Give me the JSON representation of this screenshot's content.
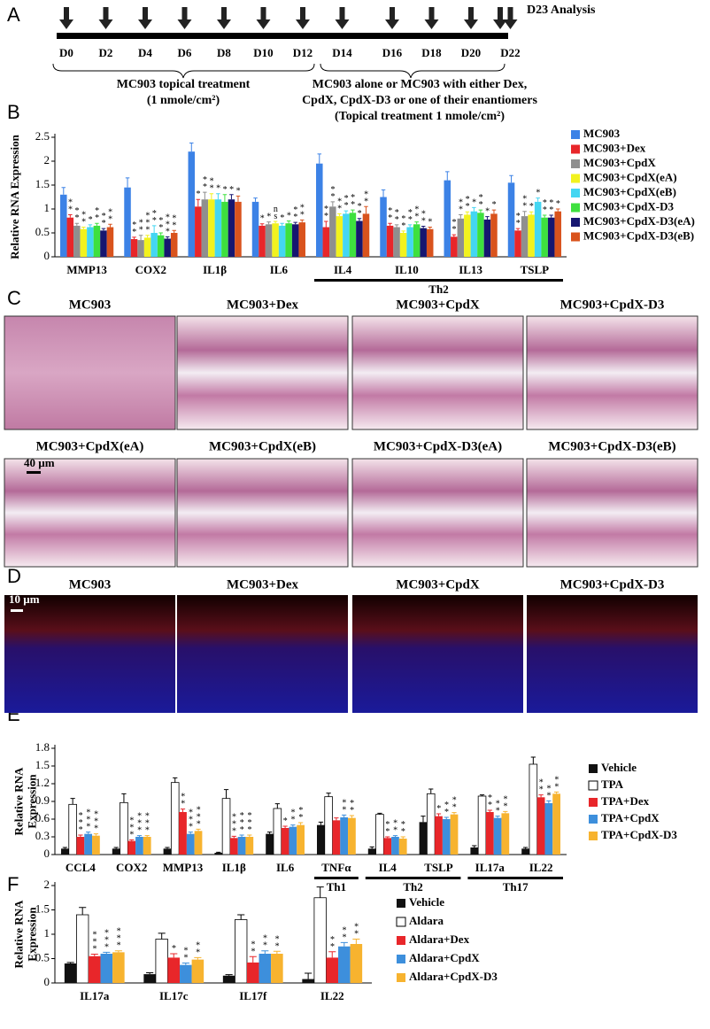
{
  "panel_letters": [
    "A",
    "B",
    "C",
    "D",
    "E",
    "F"
  ],
  "timeline": {
    "days": [
      "D0",
      "D2",
      "D4",
      "D6",
      "D8",
      "D10",
      "D12",
      "D14",
      "D16",
      "D18",
      "D20",
      "D22"
    ],
    "end_label": "D23 Analysis",
    "phase1": [
      "MC903 topical treatment",
      "(1 nmole/cm²)"
    ],
    "phase2": [
      "MC903 alone or MC903 with either Dex,",
      "CpdX, CpdX-D3 or one of their enantiomers",
      "(Topical treatment 1 nmole/cm²)"
    ]
  },
  "histology": {
    "titles": [
      "MC903",
      "MC903+Dex",
      "MC903+CpdX",
      "MC903+CpdX-D3",
      "MC903+CpdX(eA)",
      "MC903+CpdX(eB)",
      "MC903+CpdX-D3(eA)",
      "MC903+CpdX-D3(eB)"
    ],
    "scale_bar": "40 µm"
  },
  "immunofluorescence": {
    "titles": [
      "MC903",
      "MC903+Dex",
      "MC903+CpdX",
      "MC903+CpdX-D3"
    ],
    "scale_bar": "10 µm"
  },
  "chart_data": [
    {
      "type": "bar",
      "y_label": [
        "Relative RNA Expression"
      ],
      "categories": [
        "MMP13",
        "COX2",
        "IL1β",
        "IL6",
        "IL4",
        "IL10",
        "IL13",
        "TSLP"
      ],
      "group_labels": [
        "Th2"
      ],
      "ylim": [
        0,
        2.5
      ],
      "yticks": [
        0,
        0.5,
        1,
        1.5,
        2,
        2.5
      ],
      "series": [
        {
          "name": "MC903",
          "color": "#3c82e6",
          "values": [
            1.3,
            1.45,
            2.2,
            1.15,
            1.95,
            1.25,
            1.6,
            1.55
          ],
          "errors": [
            0.15,
            0.2,
            0.18,
            0.08,
            0.2,
            0.15,
            0.18,
            0.15
          ],
          "significance": [
            "",
            "",
            "",
            "",
            "",
            "",
            "",
            ""
          ]
        },
        {
          "name": "MC903+Dex",
          "color": "#e8262a",
          "values": [
            0.82,
            0.37,
            1.05,
            0.65,
            0.62,
            0.65,
            0.42,
            0.55
          ],
          "errors": [
            0.06,
            0.04,
            0.15,
            0.04,
            0.12,
            0.05,
            0.04,
            0.04
          ],
          "significance": [
            "**",
            "**",
            "*",
            "*",
            "**",
            "**",
            "**",
            "**"
          ]
        },
        {
          "name": "MC903+CpdX",
          "color": "#8f8f8f",
          "values": [
            0.65,
            0.35,
            1.2,
            0.68,
            1.05,
            0.62,
            0.8,
            0.85
          ],
          "errors": [
            0.05,
            0.1,
            0.15,
            0.05,
            0.1,
            0.05,
            0.08,
            0.1
          ],
          "significance": [
            "**",
            "**",
            "**",
            "*",
            "**",
            "**",
            "**",
            "**"
          ]
        },
        {
          "name": "MC903+CpdX(eA)",
          "color": "#f2f21e",
          "values": [
            0.58,
            0.4,
            1.2,
            0.7,
            0.85,
            0.5,
            0.88,
            0.88
          ],
          "errors": [
            0.04,
            0.05,
            0.12,
            0.04,
            0.05,
            0.04,
            0.06,
            0.06
          ],
          "significance": [
            "**",
            "***",
            "**",
            "ns",
            "**",
            "**",
            "**",
            "*"
          ]
        },
        {
          "name": "MC903+CpdX(eB)",
          "color": "#44d6f2",
          "values": [
            0.62,
            0.5,
            1.2,
            0.65,
            0.9,
            0.62,
            0.95,
            1.15
          ],
          "errors": [
            0.05,
            0.15,
            0.12,
            0.05,
            0.06,
            0.05,
            0.08,
            0.08
          ],
          "significance": [
            "*",
            "**",
            "*",
            "*",
            "**",
            "**",
            "*",
            "*"
          ]
        },
        {
          "name": "MC903+CpdX-D3",
          "color": "#3ee03e",
          "values": [
            0.65,
            0.45,
            1.15,
            0.7,
            0.92,
            0.68,
            0.92,
            0.82
          ],
          "errors": [
            0.05,
            0.05,
            0.15,
            0.05,
            0.06,
            0.05,
            0.06,
            0.05
          ],
          "significance": [
            "**",
            "**",
            "*",
            "*",
            "**",
            "**",
            "**",
            "**"
          ]
        },
        {
          "name": "MC903+CpdX-D3(eA)",
          "color": "#161670",
          "values": [
            0.55,
            0.38,
            1.2,
            0.68,
            0.75,
            0.6,
            0.78,
            0.82
          ],
          "errors": [
            0.04,
            0.04,
            0.1,
            0.04,
            0.05,
            0.04,
            0.06,
            0.05
          ],
          "significance": [
            "**",
            "***",
            "*",
            "**",
            "**",
            "**",
            "*",
            "**"
          ]
        },
        {
          "name": "MC903+CpdX-D3(eB)",
          "color": "#d9531d",
          "values": [
            0.62,
            0.5,
            1.15,
            0.72,
            0.9,
            0.58,
            0.9,
            0.95
          ],
          "errors": [
            0.06,
            0.05,
            0.12,
            0.05,
            0.15,
            0.04,
            0.08,
            0.05
          ],
          "significance": [
            "**",
            "**",
            "*",
            "**",
            "**",
            "*",
            "*",
            "*"
          ]
        }
      ]
    },
    {
      "type": "bar",
      "y_label": [
        "Relative RNA",
        "Expression"
      ],
      "categories": [
        "CCL4",
        "COX2",
        "MMP13",
        "IL1β",
        "IL6",
        "TNFα",
        "IL4",
        "TSLP",
        "IL17a",
        "IL22"
      ],
      "group_labels": [
        "Th1",
        "Th2",
        "Th17"
      ],
      "ylim": [
        0,
        1.8
      ],
      "yticks": [
        0,
        0.3,
        0.6,
        0.9,
        1.2,
        1.5,
        1.8
      ],
      "series": [
        {
          "name": "Vehicle",
          "color": "#111111",
          "values": [
            0.1,
            0.1,
            0.1,
            0.03,
            0.35,
            0.5,
            0.1,
            0.55,
            0.12,
            0.1
          ],
          "errors": [
            0.02,
            0.02,
            0.02,
            0.01,
            0.03,
            0.05,
            0.03,
            0.1,
            0.03,
            0.02
          ],
          "significance": [
            "",
            "",
            "",
            "",
            "",
            "",
            "",
            "",
            "",
            ""
          ]
        },
        {
          "name": "TPA",
          "color": "#ffffff",
          "values": [
            0.85,
            0.88,
            1.22,
            0.95,
            0.78,
            0.98,
            0.68,
            1.03,
            0.99,
            1.53
          ],
          "errors": [
            0.1,
            0.15,
            0.08,
            0.15,
            0.08,
            0.06,
            0.02,
            0.08,
            0.02,
            0.12
          ],
          "significance": [
            "",
            "",
            "",
            "",
            "",
            "",
            "",
            "",
            "",
            ""
          ]
        },
        {
          "name": "TPA+Dex",
          "color": "#e8262a",
          "values": [
            0.3,
            0.23,
            0.72,
            0.28,
            0.45,
            0.58,
            0.28,
            0.65,
            0.72,
            0.97
          ],
          "errors": [
            0.03,
            0.02,
            0.05,
            0.03,
            0.03,
            0.04,
            0.02,
            0.04,
            0.03,
            0.04
          ],
          "significance": [
            "***",
            "***",
            "**",
            "***",
            "*",
            "",
            "**",
            "*",
            "**",
            "**"
          ]
        },
        {
          "name": "TPA+CpdX",
          "color": "#3d8fdc",
          "values": [
            0.35,
            0.3,
            0.35,
            0.3,
            0.47,
            0.63,
            0.3,
            0.6,
            0.62,
            0.87
          ],
          "errors": [
            0.03,
            0.02,
            0.03,
            0.03,
            0.03,
            0.04,
            0.02,
            0.03,
            0.03,
            0.04
          ],
          "significance": [
            "***",
            "***",
            "***",
            "***",
            "**",
            "**",
            "**",
            "**",
            "**",
            "**"
          ]
        },
        {
          "name": "TPA+CpdX-D3",
          "color": "#f7b32f",
          "values": [
            0.32,
            0.3,
            0.4,
            0.3,
            0.5,
            0.62,
            0.27,
            0.68,
            0.7,
            1.03
          ],
          "errors": [
            0.03,
            0.02,
            0.03,
            0.03,
            0.04,
            0.04,
            0.03,
            0.03,
            0.03,
            0.03
          ],
          "significance": [
            "***",
            "***",
            "***",
            "***",
            "**",
            "**",
            "**",
            "**",
            "**",
            "**"
          ]
        }
      ]
    },
    {
      "type": "bar",
      "y_label": [
        "Relative RNA",
        "Expression"
      ],
      "categories": [
        "IL17a",
        "IL17c",
        "IL17f",
        "IL22"
      ],
      "group_labels": [],
      "ylim": [
        0,
        2
      ],
      "yticks": [
        0,
        0.5,
        1,
        1.5,
        2
      ],
      "series": [
        {
          "name": "Vehicle",
          "color": "#111111",
          "values": [
            0.4,
            0.18,
            0.15,
            0.08
          ],
          "errors": [
            0.02,
            0.03,
            0.02,
            0.12
          ],
          "significance": [
            "",
            "",
            "",
            ""
          ]
        },
        {
          "name": "Aldara",
          "color": "#ffffff",
          "values": [
            1.4,
            0.9,
            1.3,
            1.75
          ],
          "errors": [
            0.15,
            0.12,
            0.1,
            0.22
          ],
          "significance": [
            "",
            "",
            "",
            ""
          ]
        },
        {
          "name": "Aldara+Dex",
          "color": "#e8262a",
          "values": [
            0.55,
            0.52,
            0.42,
            0.52
          ],
          "errors": [
            0.04,
            0.08,
            0.12,
            0.12
          ],
          "significance": [
            "***",
            "*",
            "**",
            "**"
          ]
        },
        {
          "name": "Aldara+CpdX",
          "color": "#3d8fdc",
          "values": [
            0.6,
            0.37,
            0.6,
            0.75
          ],
          "errors": [
            0.03,
            0.04,
            0.06,
            0.08
          ],
          "significance": [
            "***",
            "**",
            "**",
            "**"
          ]
        },
        {
          "name": "Aldara+CpdX-D3",
          "color": "#f7b32f",
          "values": [
            0.63,
            0.48,
            0.6,
            0.8
          ],
          "errors": [
            0.03,
            0.04,
            0.05,
            0.1
          ],
          "significance": [
            "***",
            "**",
            "**",
            "**"
          ]
        }
      ]
    }
  ]
}
